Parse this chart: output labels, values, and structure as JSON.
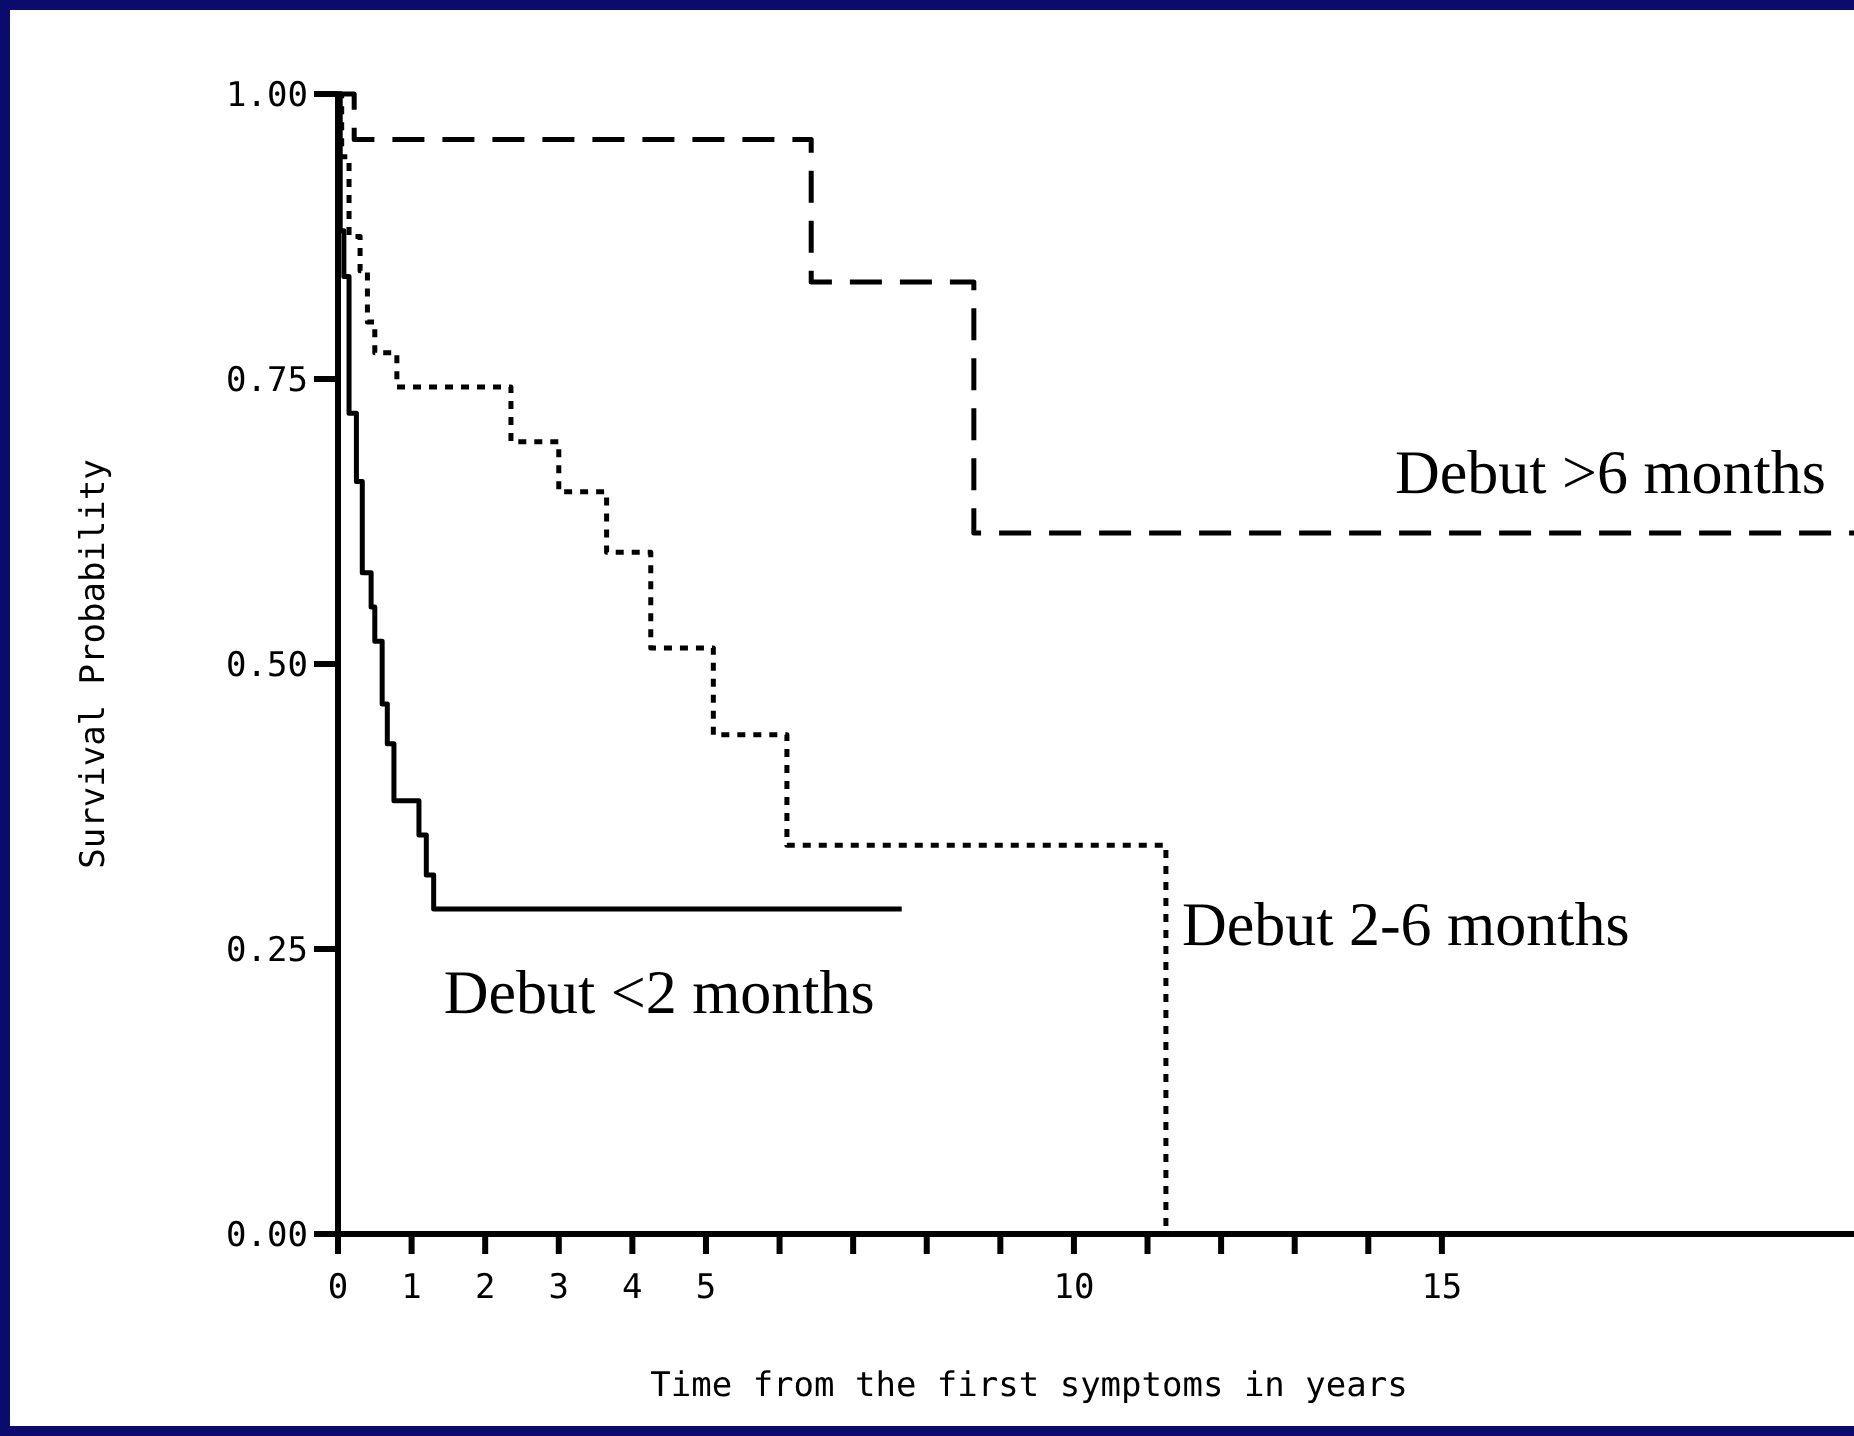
{
  "chart_data": {
    "type": "step",
    "xlabel": "Time from the first symptoms in years",
    "ylabel": "Survival Probability",
    "xlim": [
      0,
      20.6
    ],
    "ylim": [
      0,
      1
    ],
    "xticks": [
      0,
      1,
      2,
      3,
      4,
      5,
      {
        "value": 6,
        "label": null
      },
      {
        "value": 7,
        "label": null
      },
      {
        "value": 8,
        "label": null
      },
      {
        "value": 9,
        "label": null
      },
      10,
      {
        "value": 11,
        "label": null
      },
      {
        "value": 12,
        "label": null
      },
      {
        "value": 13,
        "label": null
      },
      {
        "value": 14,
        "label": null
      },
      15
    ],
    "yticks": [
      {
        "value": 0,
        "label": "0.00"
      },
      {
        "value": 0.25,
        "label": "0.25"
      },
      {
        "value": 0.5,
        "label": "0.50"
      },
      {
        "value": 0.75,
        "label": "0.75"
      },
      {
        "value": 1,
        "label": "1.00"
      }
    ],
    "grid": false,
    "legend": false,
    "series": [
      {
        "name": "Debut >6  months",
        "color": "#000000",
        "line_style": "dashed",
        "x": [
          0,
          0.22,
          6.43,
          8.64,
          20.6
        ],
        "values": [
          1,
          0.96,
          0.835,
          0.615,
          0.615
        ]
      },
      {
        "name": "Debut 2-6 months",
        "color": "#000000",
        "line_style": "dotted",
        "x": [
          0,
          0.05,
          0.15,
          0.3,
          0.4,
          0.5,
          0.8,
          2.35,
          3.0,
          3.65,
          4.25,
          5.1,
          6.1,
          11.25
        ],
        "values": [
          1,
          0.945,
          0.875,
          0.845,
          0.8,
          0.773,
          0.743,
          0.695,
          0.651,
          0.598,
          0.514,
          0.438,
          0.341,
          0
        ]
      },
      {
        "name": "Debut <2  months",
        "color": "#000000",
        "line_style": "solid",
        "x": [
          0,
          0.03,
          0.08,
          0.15,
          0.25,
          0.33,
          0.45,
          0.5,
          0.6,
          0.67,
          0.76,
          1.1,
          1.2,
          1.3,
          7.66
        ],
        "values": [
          1,
          0.88,
          0.84,
          0.72,
          0.66,
          0.58,
          0.55,
          0.52,
          0.465,
          0.43,
          0.38,
          0.35,
          0.315,
          0.285,
          0.285
        ]
      }
    ]
  }
}
